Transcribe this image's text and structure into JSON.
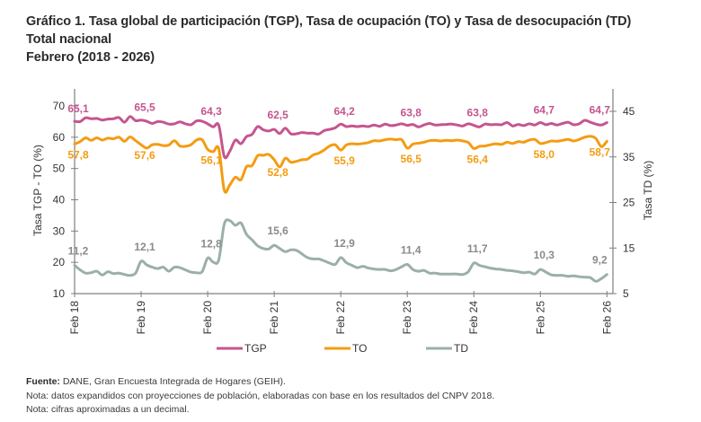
{
  "header": {
    "title_line1": "Gráfico 1. Tasa global de participación (TGP), Tasa de ocupación (TO) y Tasa de desocupación (TD)",
    "title_line2": "Total nacional",
    "title_line3": "Febrero (2018 - 2026)"
  },
  "footer": {
    "source_label": "Fuente:",
    "source_text": " DANE, Gran Encuesta Integrada de Hogares (GEIH).",
    "note1": "Nota: datos expandidos con proyecciones de población, elaboradas con base en los resultados del CNPV 2018.",
    "note2": "Nota: cifras aproximadas a un decimal."
  },
  "chart_data": {
    "type": "line",
    "title": "Tasa global de participación (TGP), Tasa de ocupación (TO) y Tasa de desocupación (TD) - Total nacional - Febrero (2018 - 2026)",
    "xlabel": "",
    "ylabel_left": "Tasa TGP - TO (%)",
    "ylabel_right": "Tasa TD (%)",
    "ylim_left": [
      10,
      70
    ],
    "yticks_left": [
      10,
      20,
      30,
      40,
      50,
      60,
      70
    ],
    "ylim_right": [
      5,
      45
    ],
    "yticks_right": [
      5,
      15,
      25,
      35,
      45
    ],
    "xticks": [
      "Feb 18",
      "Feb 19",
      "Feb 20",
      "Feb 21",
      "Feb 22",
      "Feb 23",
      "Feb 24",
      "Feb 25",
      "Feb 26"
    ],
    "x_start": "2018-02",
    "x_frequency": "monthly",
    "grid": false,
    "legend_position": "bottom",
    "series": [
      {
        "name": "TGP",
        "axis": "left",
        "color": "#c5558f",
        "values": [
          65.1,
          65.0,
          66.2,
          65.9,
          66.0,
          65.5,
          65.8,
          65.9,
          66.3,
          64.8,
          66.6,
          65.3,
          65.5,
          65.1,
          64.4,
          65.0,
          64.8,
          64.2,
          64.3,
          64.9,
          64.3,
          64.0,
          65.2,
          65.1,
          64.3,
          63.3,
          63.8,
          53.8,
          55.6,
          59.1,
          57.9,
          60.2,
          60.9,
          63.4,
          62.4,
          62.0,
          62.5,
          61.2,
          62.9,
          61.1,
          61.1,
          61.5,
          61.3,
          61.3,
          61.0,
          62.1,
          62.5,
          63.0,
          64.2,
          63.4,
          63.6,
          63.4,
          63.6,
          63.4,
          63.9,
          63.5,
          64.2,
          63.7,
          63.9,
          64.3,
          63.8,
          64.1,
          63.3,
          63.9,
          64.4,
          63.9,
          64.0,
          64.1,
          64.2,
          63.9,
          63.6,
          64.3,
          63.8,
          63.3,
          64.2,
          64.0,
          64.1,
          64.0,
          64.7,
          63.6,
          64.1,
          63.7,
          64.3,
          63.9,
          64.7,
          64.0,
          64.4,
          63.9,
          64.4,
          64.8,
          64.0,
          64.3,
          65.4,
          64.8,
          64.2,
          63.9,
          64.7
        ]
      },
      {
        "name": "TO",
        "axis": "left",
        "color": "#f39c12",
        "values": [
          57.8,
          58.6,
          59.8,
          59.0,
          59.8,
          59.1,
          59.7,
          59.5,
          60.0,
          58.7,
          60.1,
          58.9,
          57.6,
          56.5,
          57.6,
          57.7,
          57.3,
          57.5,
          58.9,
          57.2,
          57.1,
          57.6,
          59.1,
          59.2,
          56.1,
          55.4,
          56.3,
          43.0,
          44.8,
          47.2,
          46.4,
          50.6,
          50.9,
          54.1,
          54.2,
          54.5,
          52.8,
          50.5,
          53.3,
          52.0,
          52.3,
          52.8,
          53.0,
          54.3,
          54.9,
          55.9,
          57.2,
          57.6,
          55.9,
          57.5,
          57.9,
          57.8,
          58.0,
          58.3,
          58.9,
          58.8,
          59.2,
          59.4,
          59.2,
          59.2,
          56.5,
          57.8,
          58.1,
          58.4,
          58.9,
          59.0,
          58.8,
          59.0,
          58.9,
          59.1,
          58.8,
          58.3,
          56.4,
          57.1,
          57.2,
          57.6,
          57.9,
          57.7,
          58.4,
          58.0,
          58.6,
          58.4,
          59.1,
          59.3,
          58.0,
          58.3,
          58.8,
          58.7,
          59.0,
          59.3,
          58.8,
          59.3,
          60.0,
          60.3,
          59.6,
          57.0,
          58.7
        ]
      },
      {
        "name": "TD",
        "axis": "right",
        "color": "#9bafaa",
        "values": [
          11.2,
          10.2,
          9.5,
          9.6,
          9.9,
          9.1,
          9.8,
          9.4,
          9.5,
          9.2,
          9.0,
          9.5,
          12.1,
          11.3,
          10.8,
          10.5,
          10.8,
          9.9,
          10.8,
          10.7,
          10.2,
          9.7,
          9.6,
          9.8,
          12.8,
          11.9,
          12.4,
          20.3,
          21.0,
          20.0,
          20.5,
          18.0,
          16.8,
          15.5,
          14.9,
          14.8,
          15.6,
          14.9,
          14.2,
          14.6,
          14.5,
          13.7,
          12.9,
          12.6,
          12.6,
          12.2,
          11.7,
          11.4,
          12.9,
          11.8,
          11.2,
          10.7,
          11.0,
          10.6,
          10.4,
          10.3,
          10.3,
          10.0,
          10.3,
          10.9,
          11.4,
          10.3,
          9.9,
          10.1,
          9.5,
          9.5,
          9.3,
          9.3,
          9.3,
          9.3,
          9.2,
          9.8,
          11.7,
          11.2,
          10.9,
          10.6,
          10.4,
          10.3,
          10.1,
          10.0,
          9.8,
          9.6,
          9.7,
          9.3,
          10.3,
          9.7,
          9.1,
          9.0,
          9.0,
          8.8,
          8.9,
          8.7,
          8.6,
          8.5,
          7.7,
          8.3,
          9.2
        ]
      }
    ],
    "annotations": {
      "TGP": [
        "65,1",
        "65,5",
        "64,3",
        "62,5",
        "64,2",
        "63,8",
        "63,8",
        "64,7",
        "64,7"
      ],
      "TO": [
        "57,8",
        "57,6",
        "56,1",
        "52,8",
        "55,9",
        "56,5",
        "56,4",
        "58,0",
        "58,7"
      ],
      "TD": [
        "11,2",
        "12,1",
        "12,8",
        "15,6",
        "12,9",
        "11,4",
        "11,7",
        "10,3",
        "9,2"
      ]
    }
  }
}
